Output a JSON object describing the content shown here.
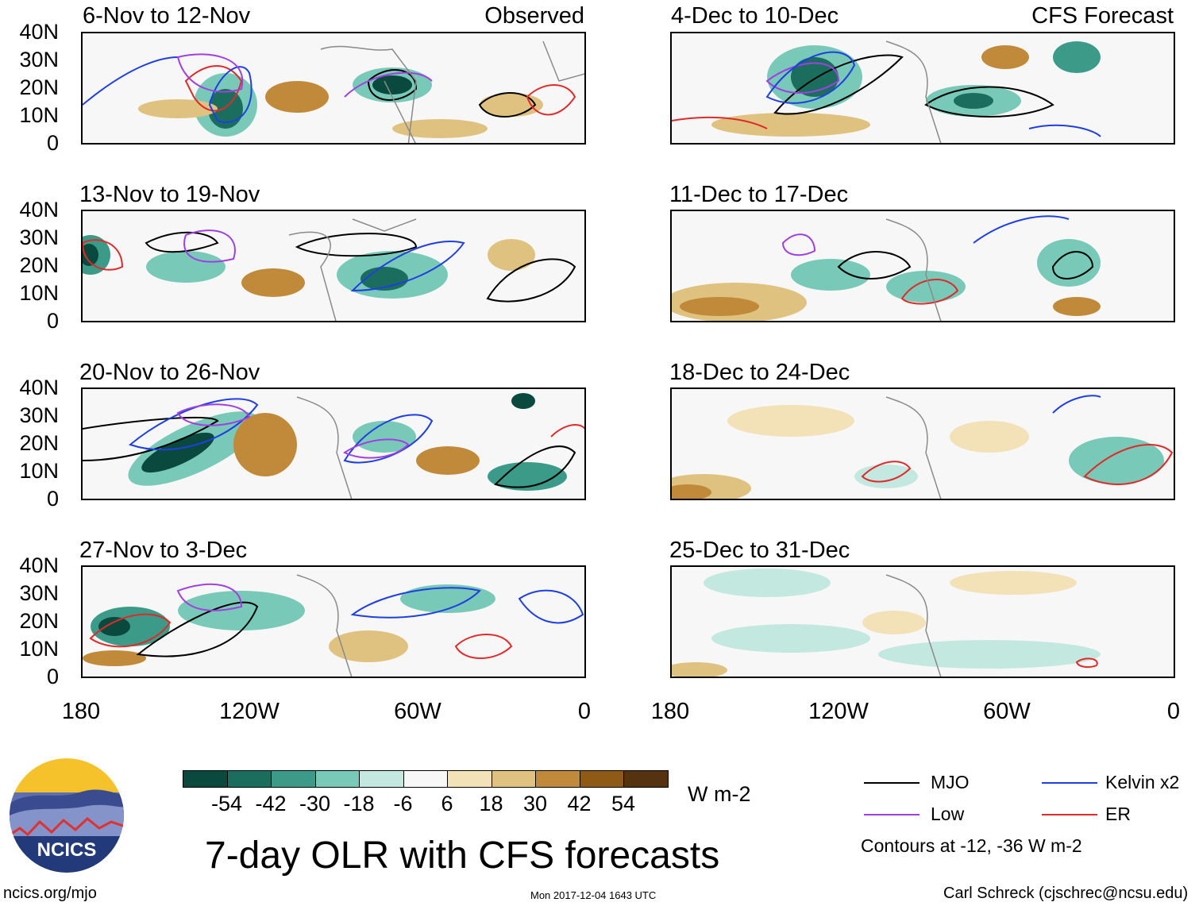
{
  "column_labels": {
    "observed": "Observed",
    "forecast": "CFS Forecast"
  },
  "panels": [
    {
      "title": "6-Nov to 12-Nov"
    },
    {
      "title": "13-Nov to 19-Nov"
    },
    {
      "title": "20-Nov to 26-Nov"
    },
    {
      "title": "27-Nov to 3-Dec"
    },
    {
      "title": "4-Dec to 10-Dec"
    },
    {
      "title": "11-Dec to 17-Dec"
    },
    {
      "title": "18-Dec to 24-Dec"
    },
    {
      "title": "25-Dec to 31-Dec"
    }
  ],
  "lat_labels": [
    "40N",
    "30N",
    "20N",
    "10N",
    "0"
  ],
  "lon_labels": [
    "180",
    "120W",
    "60W",
    "0"
  ],
  "colorbar": {
    "colors": [
      "#0a4a3e",
      "#1b6e5e",
      "#3c9a89",
      "#79c9b8",
      "#c3e8df",
      "#f7f7f7",
      "#f3e2b7",
      "#dfc27f",
      "#c08a3a",
      "#8f5916",
      "#553210"
    ],
    "ticks": [
      "-54",
      "-42",
      "-30",
      "-18",
      "-6",
      "6",
      "18",
      "30",
      "42",
      "54"
    ],
    "unit": "W m-2"
  },
  "title": "7-day OLR with CFS forecasts",
  "legend": {
    "items": [
      {
        "label": "MJO",
        "color": "#000000"
      },
      {
        "label": "Kelvin x2",
        "color": "#1f3fe0"
      },
      {
        "label": "Low",
        "color": "#a040e0"
      },
      {
        "label": "ER",
        "color": "#e02a2a"
      }
    ],
    "note": "Contours at -12, -36 W m-2"
  },
  "footer": {
    "left": "ncics.org/mjo",
    "center": "Mon 2017-12-04 1643 UTC",
    "right": "Carl Schreck (cjschrec@ncsu.edu)"
  },
  "logo": {
    "text": "NCICS"
  }
}
